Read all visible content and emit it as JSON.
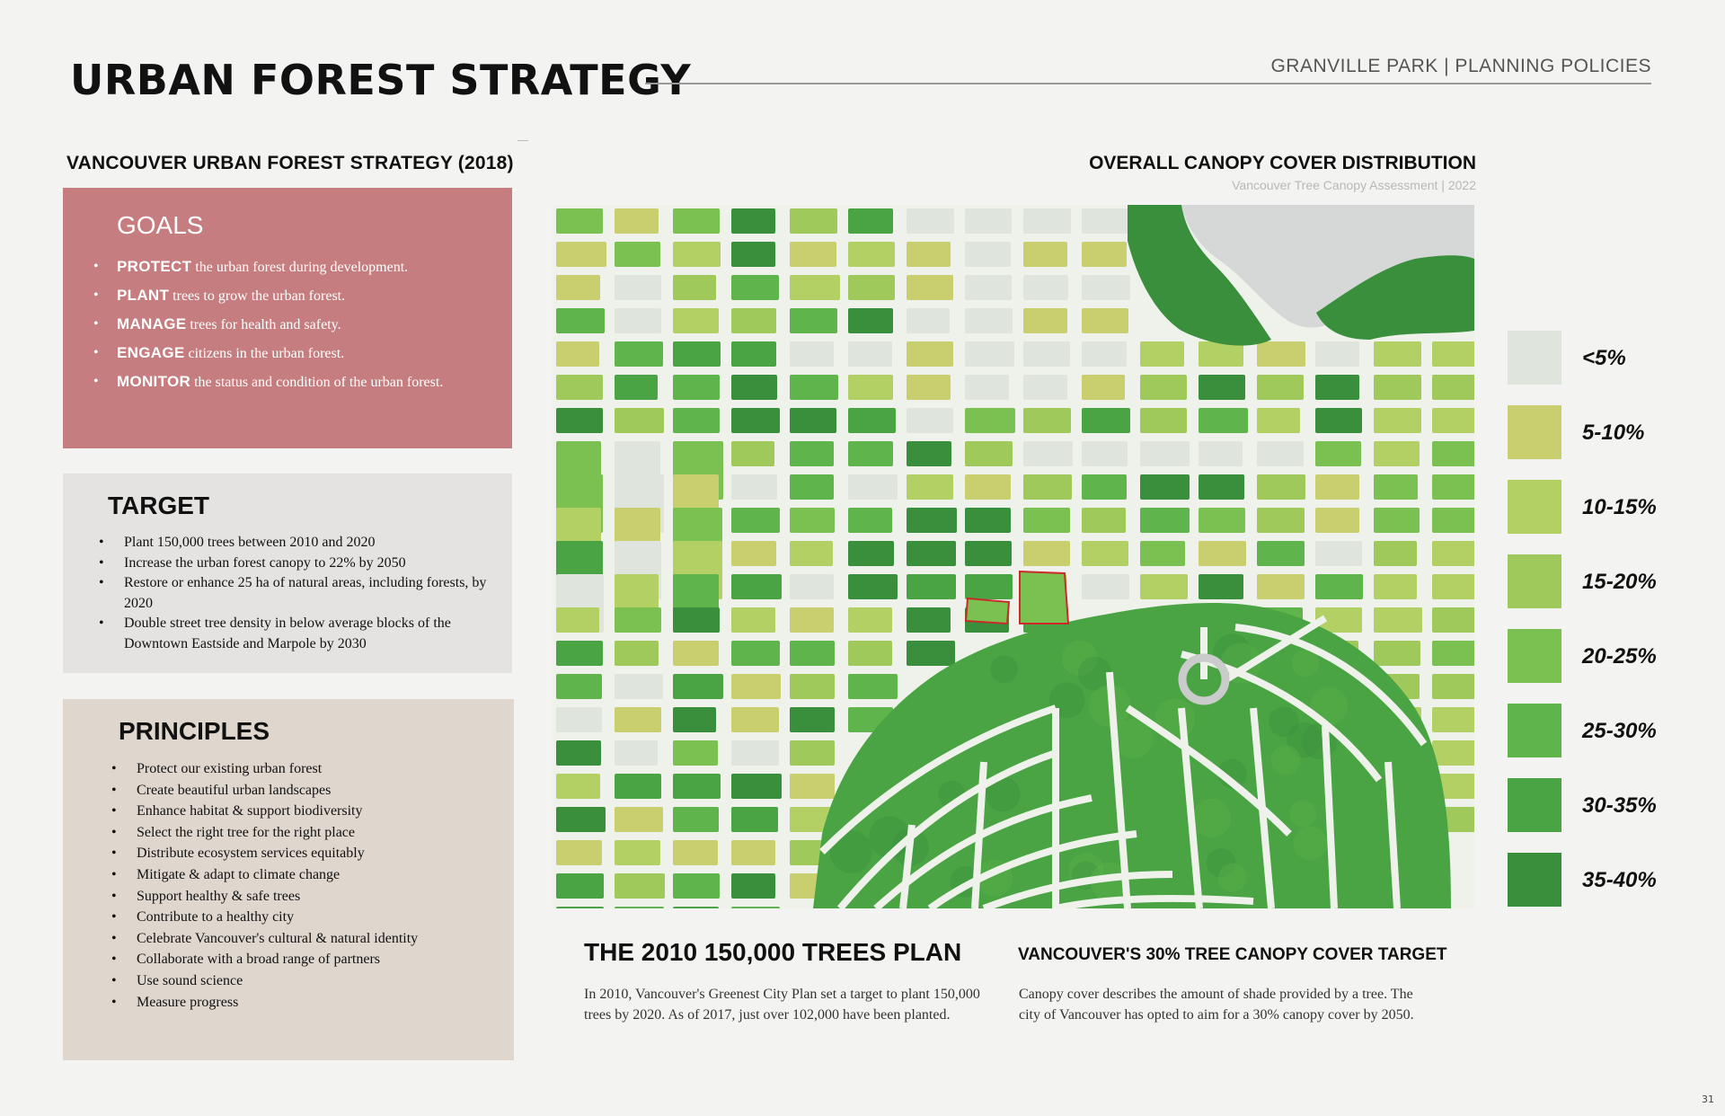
{
  "header": {
    "title": "URBAN FOREST STRATEGY",
    "tag": "GRANVILLE PARK | PLANNING POLICIES"
  },
  "left": {
    "section_title": "VANCOUVER URBAN FOREST STRATEGY (2018)",
    "goals": {
      "title": "GOALS",
      "items": [
        {
          "key": "PROTECT",
          "text": " the urban forest during development."
        },
        {
          "key": "PLANT",
          "text": " trees to grow the urban forest."
        },
        {
          "key": "MANAGE",
          "text": " trees for health and safety."
        },
        {
          "key": "ENGAGE",
          "text": " citizens in the urban forest."
        },
        {
          "key": "MONITOR",
          "text": " the status and condition of the urban forest."
        }
      ]
    },
    "target": {
      "title": "TARGET",
      "items": [
        "Plant 150,000 trees between 2010 and 2020",
        "Increase the urban forest canopy to 22% by 2050",
        "Restore or enhance 25 ha of natural areas, including forests, by 2020",
        "Double street tree density in below average blocks of the Downtown Eastside and Marpole by 2030"
      ]
    },
    "principles": {
      "title": "PRINCIPLES",
      "items": [
        "Protect our existing urban forest",
        "Create beautiful urban landscapes",
        "Enhance habitat & support biodiversity",
        "Select the right tree for the right place",
        "Distribute ecosystem services equitably",
        "Mitigate & adapt to climate change",
        "Support healthy & safe trees",
        "Contribute to a healthy city",
        "Celebrate Vancouver's cultural & natural identity",
        "Collaborate with a broad range of partners",
        "Use sound science",
        "Measure progress"
      ]
    }
  },
  "map": {
    "title": "OVERALL CANOPY COVER DISTRIBUTION",
    "subtitle": "Vancouver Tree Canopy Assessment | 2022",
    "colors": {
      "road": "#eef2ea",
      "water": "#d5d8d6",
      "site_outline": "#cc2a2a"
    }
  },
  "legend": {
    "items": [
      {
        "label": "<5%",
        "color": "#dfe4dc"
      },
      {
        "label": "5-10%",
        "color": "#c9cf6e"
      },
      {
        "label": "10-15%",
        "color": "#b3d065"
      },
      {
        "label": "15-20%",
        "color": "#9fc95a"
      },
      {
        "label": "20-25%",
        "color": "#7bc152"
      },
      {
        "label": "25-30%",
        "color": "#5fb54b"
      },
      {
        "label": "30-35%",
        "color": "#4aa444"
      },
      {
        "label": "35-40%",
        "color": "#3a8f3c"
      }
    ]
  },
  "plan": {
    "title": "THE 2010 150,000 TREES PLAN",
    "text": "In 2010, Vancouver's Greenest City Plan set a target to plant 150,000 trees by 2020. As of 2017, just over 102,000 have been planted."
  },
  "canopy_target": {
    "title": "VANCOUVER'S 30% TREE CANOPY COVER TARGET",
    "text": "Canopy cover describes the amount of shade provided by a tree. The city of Vancouver has opted to aim for a 30% canopy cover by 2050."
  },
  "page_number": "31"
}
